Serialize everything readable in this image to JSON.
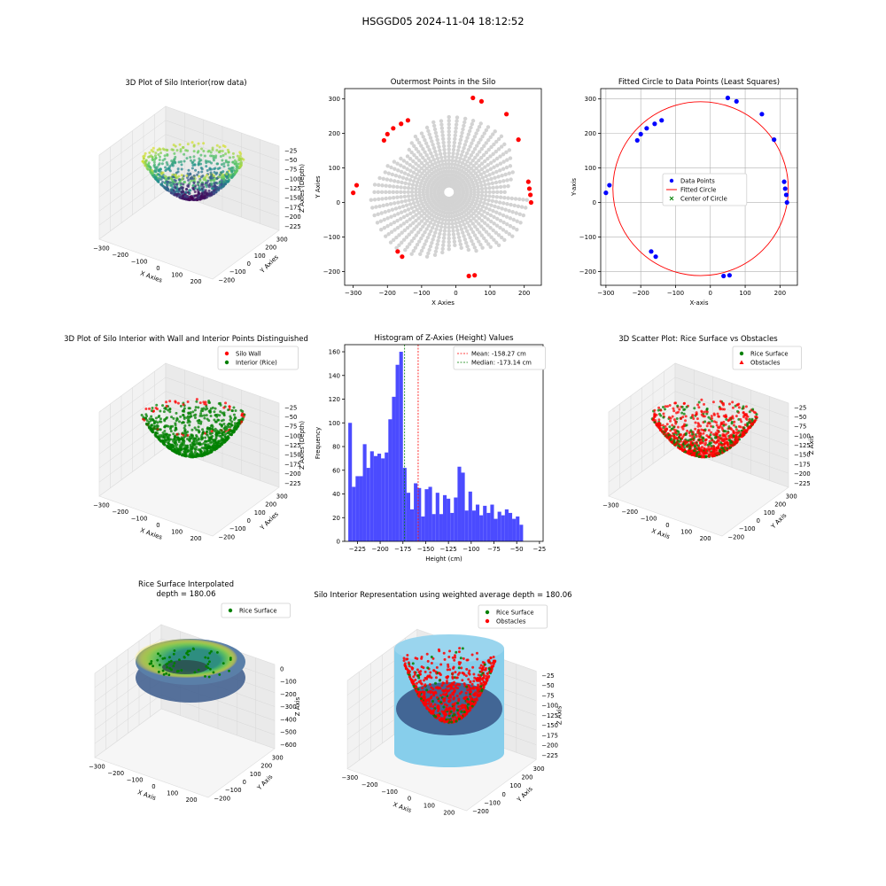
{
  "figure": {
    "suptitle": "HSGGD05 2024-11-04 18:12:52"
  },
  "colors": {
    "gray_points": "#d3d3d3",
    "red": "#ff0000",
    "blue": "#0000ff",
    "green": "#008000",
    "sky": "#87ceeb",
    "hist_bar": "#4b4bff"
  },
  "chart_data": [
    {
      "id": "p1",
      "type": "scatter",
      "projection": "3d",
      "title": "3D Plot of Silo Interior(row data)",
      "xlabel": "X Axies",
      "ylabel": "Y Axies",
      "zlabel": "Z Axies (Depth)",
      "xticks": [
        "−300",
        "−200",
        "−100",
        "0",
        "100",
        "200"
      ],
      "yticks": [
        "−200",
        "−100",
        "0",
        "100",
        "200",
        "300"
      ],
      "zticks": [
        "−25",
        "−50",
        "−75",
        "−100",
        "−125",
        "−150",
        "−175",
        "−200",
        "−225"
      ],
      "colormap": "viridis",
      "xlim": [
        -300,
        220
      ],
      "ylim": [
        -220,
        310
      ],
      "zlim": [
        -240,
        -25
      ]
    },
    {
      "id": "p2",
      "type": "scatter",
      "title": "Outermost Points in the Silo",
      "xlabel": "X Axies",
      "ylabel": "Y Axies",
      "xlim": [
        -325,
        250
      ],
      "ylim": [
        -240,
        330
      ],
      "xticks": [
        -300,
        -200,
        -100,
        0,
        100,
        200
      ],
      "yticks": [
        -200,
        -100,
        0,
        100,
        200,
        300
      ],
      "xtick_labels": [
        "−300",
        "−200",
        "−100",
        "0",
        "100",
        "200"
      ],
      "ytick_labels": [
        "−200",
        "−100",
        "0",
        "100",
        "200",
        "300"
      ],
      "outermost_points": [
        [
          -300,
          28
        ],
        [
          -290,
          50
        ],
        [
          -210,
          180
        ],
        [
          -200,
          198
        ],
        [
          -183,
          215
        ],
        [
          -160,
          228
        ],
        [
          -140,
          238
        ],
        [
          -170,
          -142
        ],
        [
          -157,
          -157
        ],
        [
          38,
          -213
        ],
        [
          55,
          -211
        ],
        [
          50,
          303
        ],
        [
          75,
          293
        ],
        [
          148,
          256
        ],
        [
          183,
          182
        ],
        [
          212,
          60
        ],
        [
          215,
          40
        ],
        [
          218,
          22
        ],
        [
          220,
          0
        ]
      ],
      "grid": false
    },
    {
      "id": "p3",
      "type": "scatter",
      "title": "Fitted Circle to Data Points (Least Squares)",
      "xlabel": "X-axis",
      "ylabel": "Y-axis",
      "xlim": [
        -315,
        250
      ],
      "ylim": [
        -240,
        330
      ],
      "xticks": [
        -300,
        -200,
        -100,
        0,
        100,
        200
      ],
      "yticks": [
        -200,
        -100,
        0,
        100,
        200,
        300
      ],
      "xtick_labels": [
        "−300",
        "−200",
        "−100",
        "0",
        "100",
        "200"
      ],
      "ytick_labels": [
        "−200",
        "−100",
        "0",
        "100",
        "200",
        "300"
      ],
      "data_points": [
        [
          -300,
          28
        ],
        [
          -290,
          50
        ],
        [
          -210,
          180
        ],
        [
          -200,
          198
        ],
        [
          -183,
          215
        ],
        [
          -160,
          228
        ],
        [
          -140,
          238
        ],
        [
          -170,
          -142
        ],
        [
          -157,
          -157
        ],
        [
          38,
          -213
        ],
        [
          55,
          -211
        ],
        [
          50,
          303
        ],
        [
          75,
          293
        ],
        [
          148,
          256
        ],
        [
          183,
          182
        ],
        [
          212,
          60
        ],
        [
          215,
          40
        ],
        [
          218,
          22
        ],
        [
          220,
          0
        ]
      ],
      "circle": {
        "cx": -28,
        "cy": 40,
        "r": 252
      },
      "legend": [
        "Data Points",
        "Fitted Circle",
        "Center of Circle"
      ],
      "legend_loc": "center-right",
      "grid": true
    },
    {
      "id": "p4",
      "type": "scatter",
      "projection": "3d",
      "title": "3D Plot of Silo Interior with Wall and Interior Points Distinguished",
      "xlabel": "X Axies",
      "ylabel": "Y Axies",
      "zlabel": "Z Axies (Depth)",
      "xticks": [
        "−300",
        "−200",
        "−100",
        "0",
        "100",
        "200"
      ],
      "yticks": [
        "−200",
        "−100",
        "0",
        "100",
        "200",
        "300"
      ],
      "zticks": [
        "−25",
        "−50",
        "−75",
        "−100",
        "−125",
        "−150",
        "−175",
        "−200",
        "−225"
      ],
      "legend": [
        "Silo Wall",
        "Interior (Rice)"
      ],
      "legend_loc": "top-right"
    },
    {
      "id": "p5",
      "type": "bar",
      "title": "Histogram of Z-Axies (Height) Values",
      "xlabel": "Height (cm)",
      "ylabel": "Frequency",
      "xlim": [
        -239,
        -21
      ],
      "ylim": [
        0,
        166
      ],
      "bin_start": -235,
      "bin_width": 4,
      "values": [
        100,
        46,
        55,
        55,
        82,
        62,
        76,
        72,
        74,
        70,
        75,
        103,
        122,
        149,
        160,
        62,
        41,
        27,
        49,
        45,
        21,
        44,
        46,
        23,
        41,
        23,
        39,
        36,
        24,
        37,
        63,
        58,
        26,
        42,
        26,
        31,
        22,
        30,
        24,
        31,
        19,
        25,
        22,
        27,
        24,
        19,
        21,
        14
      ],
      "mean": -158.27,
      "median": -173.14,
      "xticks": [
        -225,
        -200,
        -175,
        -150,
        -125,
        -100,
        -75,
        -50,
        -25
      ],
      "yticks": [
        0,
        20,
        40,
        60,
        80,
        100,
        120,
        140,
        160
      ],
      "xtick_labels": [
        "−225",
        "−200",
        "−175",
        "−150",
        "−125",
        "−100",
        "−75",
        "−50",
        "−25"
      ],
      "ytick_labels": [
        "0",
        "20",
        "40",
        "60",
        "80",
        "100",
        "120",
        "140",
        "160"
      ],
      "legend": [
        "Mean: -158.27 cm",
        "Median: -173.14 cm"
      ],
      "legend_loc": "top-right"
    },
    {
      "id": "p6",
      "type": "scatter",
      "projection": "3d",
      "title": "3D Scatter Plot: Rice Surface vs Obstacles",
      "xlabel": "X Axis",
      "ylabel": "Y Axis",
      "zlabel": "Z Axis",
      "xticks": [
        "−300",
        "−200",
        "−100",
        "0",
        "100",
        "200"
      ],
      "yticks": [
        "−200",
        "−100",
        "0",
        "100",
        "200",
        "300"
      ],
      "zticks": [
        "−25",
        "−50",
        "−75",
        "−100",
        "−125",
        "−150",
        "−175",
        "−200",
        "−225"
      ],
      "legend": [
        "Rice Surface",
        "Obstacles"
      ],
      "legend_loc": "top-right"
    },
    {
      "id": "p7",
      "type": "area",
      "projection": "3d",
      "title": "Rice Surface Interpolated",
      "subtitle": "depth = 180.06",
      "xlabel": "X Axis",
      "ylabel": "Y Axis",
      "zlabel": "Z Axis",
      "xticks": [
        "−300",
        "−200",
        "−100",
        "0",
        "100",
        "200"
      ],
      "yticks": [
        "−200",
        "−100",
        "0",
        "100",
        "200",
        "300"
      ],
      "zticks": [
        "0",
        "−100",
        "−200",
        "−300",
        "−400",
        "−500",
        "−600"
      ],
      "legend": [
        "Rice Surface"
      ],
      "legend_loc": "top-right"
    },
    {
      "id": "p8",
      "type": "scatter",
      "projection": "3d",
      "title": "Silo Interior Representation using weighted average depth = 180.06",
      "xlabel": "X Axis",
      "ylabel": "Y Axis",
      "zlabel": "Z Axis",
      "xticks": [
        "−300",
        "−200",
        "−100",
        "0",
        "100",
        "200"
      ],
      "yticks": [
        "−200",
        "−100",
        "0",
        "100",
        "200",
        "300"
      ],
      "zticks": [
        "−25",
        "−50",
        "−75",
        "−100",
        "−125",
        "−150",
        "−175",
        "−200",
        "−225"
      ],
      "legend": [
        "Rice Surface",
        "Obstacles"
      ],
      "legend_loc": "top-center"
    }
  ]
}
